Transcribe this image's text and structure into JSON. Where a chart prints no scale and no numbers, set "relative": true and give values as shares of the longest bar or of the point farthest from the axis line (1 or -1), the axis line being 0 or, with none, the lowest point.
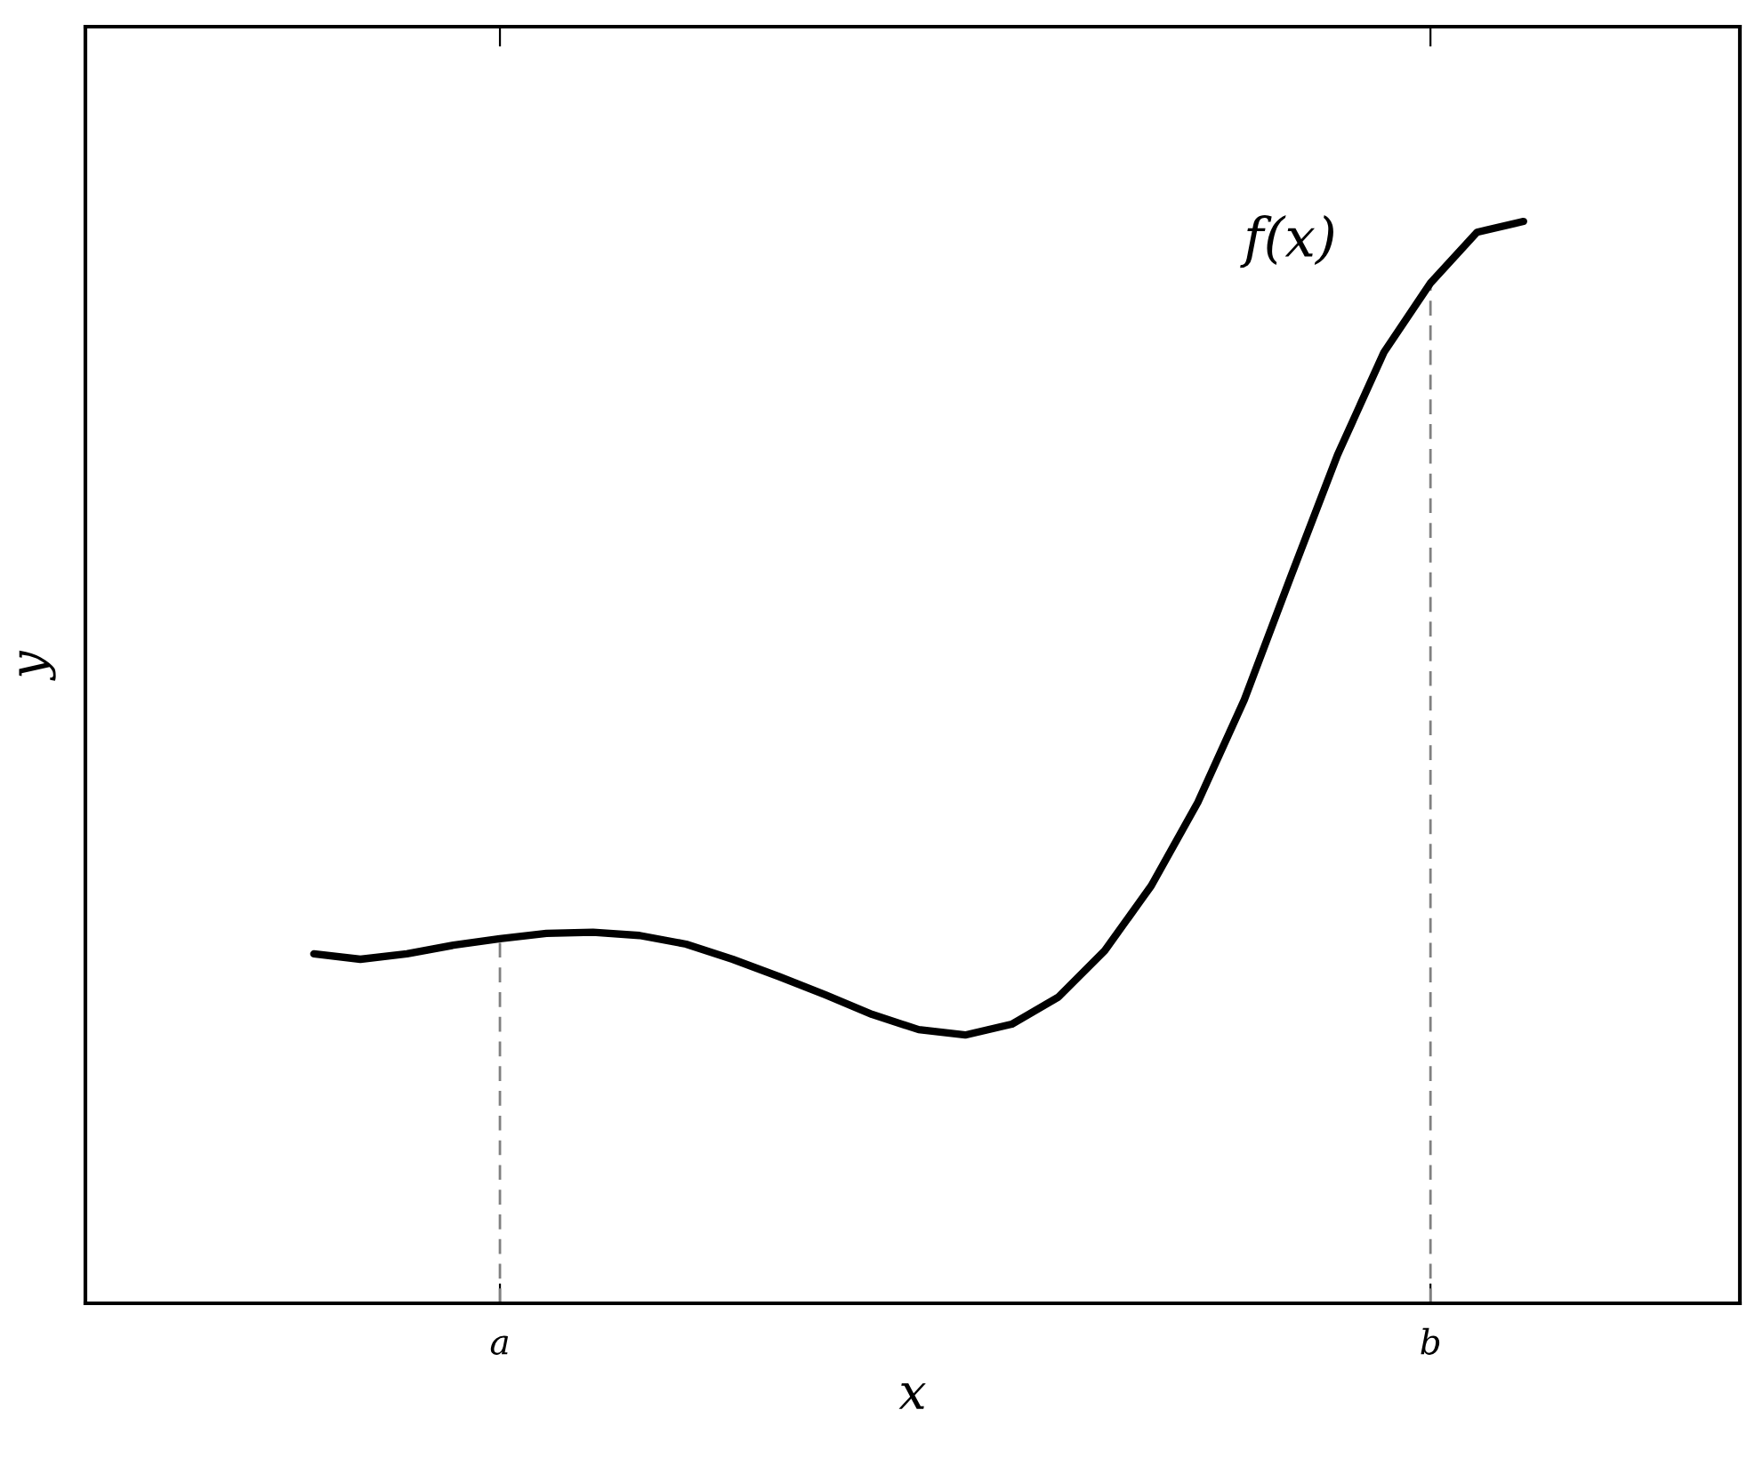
{
  "chart_data": {
    "type": "line",
    "relative": true,
    "xlabel": "x",
    "ylabel": "y",
    "categories": [
      null,
      null,
      null,
      null,
      "a",
      null,
      null,
      null,
      null,
      null,
      null,
      null,
      null,
      null,
      null,
      null,
      null,
      null,
      null,
      null,
      null,
      null,
      null,
      null,
      "b",
      null,
      null
    ],
    "tick_labels": "x",
    "grid": false,
    "legend": false,
    "annotations": [
      "f(x)"
    ],
    "ref_lines": [
      {
        "axis": "x",
        "value": "a",
        "color": "#808080",
        "line_style": "dashed"
      },
      {
        "axis": "x",
        "value": "b",
        "color": "#808080",
        "line_style": "dashed"
      }
    ],
    "series": [
      {
        "color": "#000000",
        "line_style": "solid",
        "values": [
          0.323,
          0.318,
          0.323,
          0.331,
          0.337,
          0.342,
          0.343,
          0.34,
          0.332,
          0.318,
          0.302,
          0.285,
          0.267,
          0.253,
          0.248,
          0.258,
          0.283,
          0.326,
          0.386,
          0.463,
          0.558,
          0.672,
          0.784,
          0.879,
          0.943,
          0.99,
          1.0
        ]
      }
    ]
  }
}
